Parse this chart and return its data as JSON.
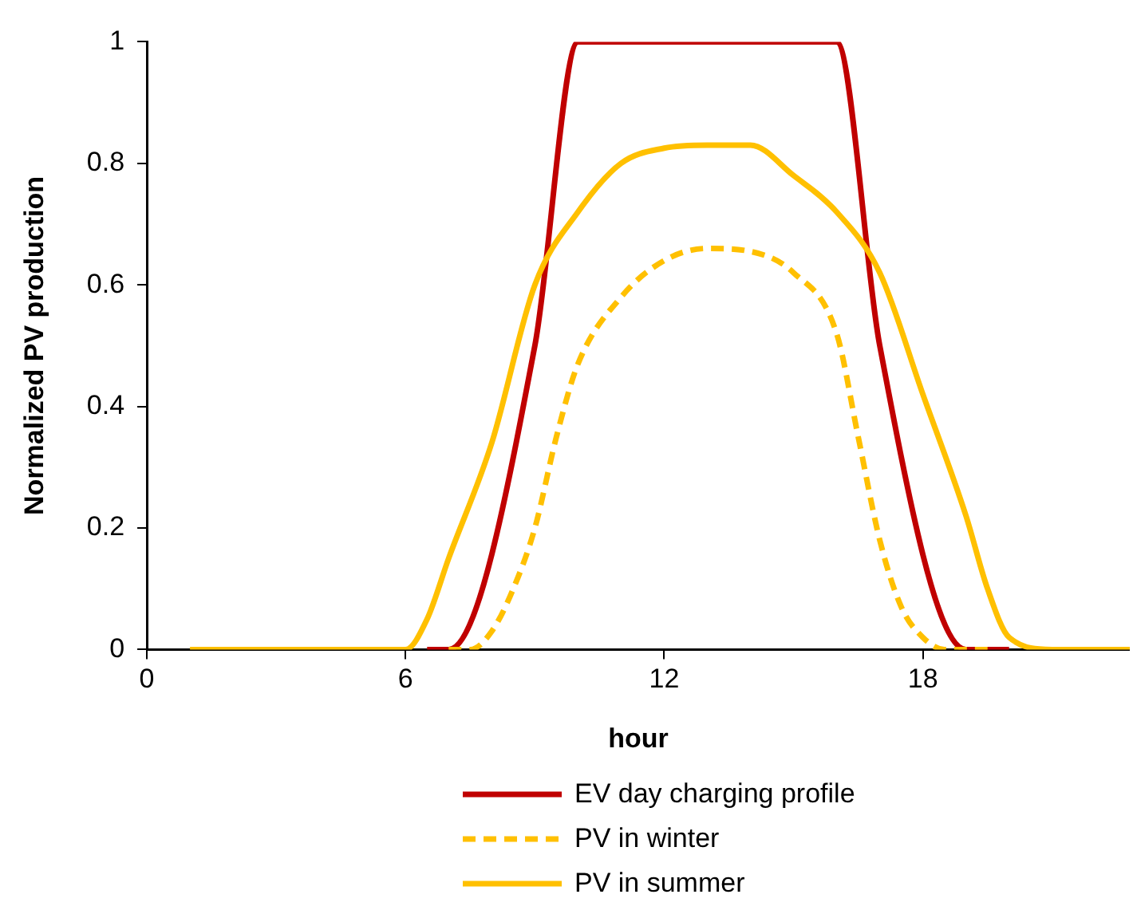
{
  "chart_data": {
    "type": "line",
    "xlabel": "hour",
    "ylabel": "Normalized PV production",
    "xlim": [
      0,
      22.8
    ],
    "xticks": [
      0,
      6,
      12,
      18
    ],
    "ylim": [
      0,
      1
    ],
    "yticks": [
      0,
      0.2,
      0.4,
      0.6,
      0.8,
      1
    ],
    "grid": false,
    "legend": "bottom",
    "marker": "none",
    "series": [
      {
        "name": "EV day charging profile",
        "color": "#c00000",
        "line_style": "solid",
        "x": [
          6.5,
          7,
          9,
          10,
          16,
          17,
          19,
          20
        ],
        "values": [
          0,
          0,
          0.5,
          1,
          1,
          0.5,
          0,
          0
        ]
      },
      {
        "name": "PV in winter",
        "color": "#ffc000",
        "line_style": "dashed",
        "x": [
          7,
          7.5,
          8,
          8.5,
          9,
          9.5,
          10,
          11,
          12,
          13,
          14,
          15,
          16,
          16.5,
          17,
          17.5,
          18,
          18.5,
          19,
          19.5
        ],
        "values": [
          0,
          0,
          0.03,
          0.1,
          0.2,
          0.35,
          0.47,
          0.58,
          0.64,
          0.66,
          0.655,
          0.62,
          0.52,
          0.35,
          0.18,
          0.07,
          0.02,
          0,
          0,
          0
        ]
      },
      {
        "name": "PV in summer",
        "color": "#ffc000",
        "line_style": "solid",
        "x": [
          1,
          2,
          3,
          4,
          5,
          6,
          6.5,
          7,
          8,
          9,
          10,
          11,
          12,
          13,
          14,
          15,
          16,
          17,
          18,
          19,
          19.5,
          20,
          21,
          22,
          22.8
        ],
        "values": [
          0,
          0,
          0,
          0,
          0,
          0,
          0.05,
          0.15,
          0.34,
          0.6,
          0.72,
          0.8,
          0.825,
          0.83,
          0.83,
          0.78,
          0.72,
          0.62,
          0.42,
          0.22,
          0.1,
          0.02,
          0,
          0,
          0
        ]
      }
    ]
  }
}
